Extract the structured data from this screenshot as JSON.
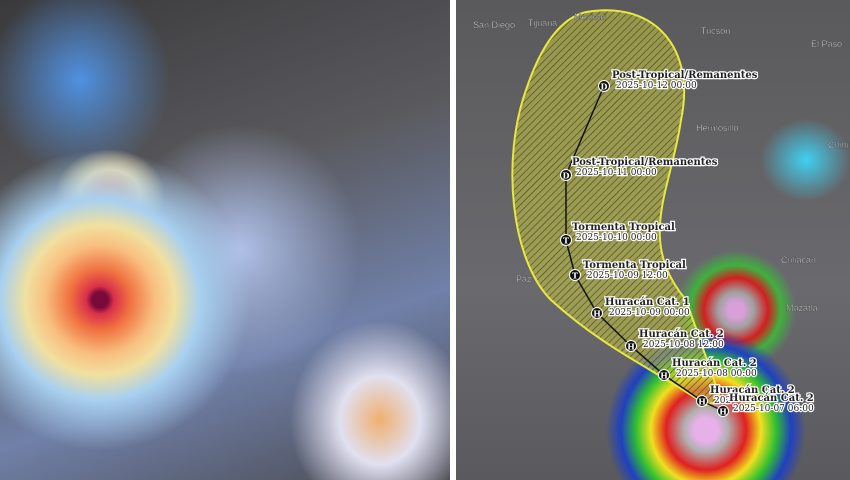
{
  "left_panel": {
    "image": "satellite-infrared-hurricane"
  },
  "right_panel": {
    "cities": [
      "San Diego",
      "Tijuana",
      "Mexicali",
      "Tucson",
      "El Paso",
      "Hermosillo",
      "Chihu",
      "Culiacán",
      "Mazatlá",
      "Paz"
    ],
    "cone_color": "#e8e840",
    "track": [
      {
        "symbol": "D",
        "label": "Post-Tropical/Remanentes",
        "time": "2025-10-12 00:00"
      },
      {
        "symbol": "D",
        "label": "Post-Tropical/Remanentes",
        "time": "2025-10-11 00:00"
      },
      {
        "symbol": "T",
        "label": "Tormenta Tropical",
        "time": "2025-10-10 00:00"
      },
      {
        "symbol": "T",
        "label": "Tormenta Tropical",
        "time": "2025-10-09 12:00"
      },
      {
        "symbol": "H",
        "label": "Huracán Cat. 1",
        "time": "2025-10-09 00:00"
      },
      {
        "symbol": "H",
        "label": "Huracán Cat. 2",
        "time": "2025-10-08 12:00"
      },
      {
        "symbol": "H",
        "label": "Huracán Cat. 2",
        "time": "2025-10-08 00:00"
      },
      {
        "symbol": "H",
        "label": "Huracán Cat. 2",
        "time": "202"
      },
      {
        "symbol": "H",
        "label": "Huracán Cat. 2",
        "time": "2025-10-07 06:00"
      }
    ]
  }
}
